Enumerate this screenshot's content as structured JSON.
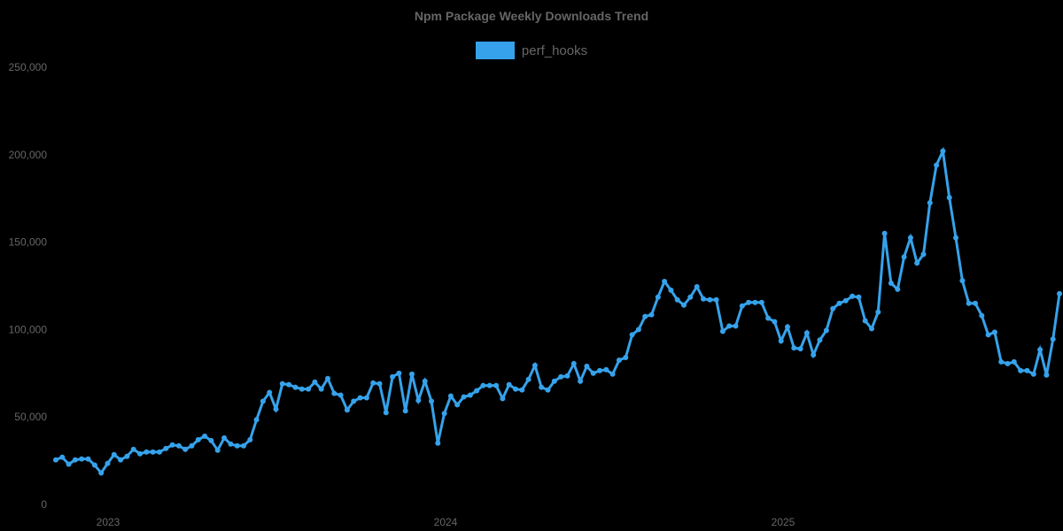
{
  "chart_data": {
    "type": "line",
    "title": "Npm Package Weekly Downloads Trend",
    "xlabel": "",
    "ylabel": "",
    "ylim": [
      0,
      250000
    ],
    "yticks": [
      0,
      50000,
      100000,
      150000,
      200000,
      250000
    ],
    "ytick_labels": [
      "0",
      "50,000",
      "100,000",
      "150,000",
      "200,000",
      "250,000"
    ],
    "xtick_labels": [
      "2023",
      "2024",
      "2025"
    ],
    "grid": false,
    "legend_position": "top-center",
    "series": [
      {
        "name": "perf_hooks",
        "color": "#36a2eb",
        "values": [
          25000,
          26500,
          22500,
          25000,
          25500,
          25500,
          22000,
          17500,
          23000,
          28000,
          25000,
          27000,
          31000,
          28500,
          29500,
          29500,
          29500,
          31500,
          33500,
          33000,
          31000,
          33000,
          36500,
          38500,
          36000,
          30500,
          37500,
          34000,
          33000,
          33000,
          36500,
          48000,
          58500,
          63500,
          54000,
          68500,
          68000,
          66500,
          65500,
          65500,
          69500,
          65500,
          71500,
          63000,
          62000,
          53500,
          58500,
          60500,
          60500,
          69000,
          68500,
          52000,
          72500,
          74500,
          53000,
          74000,
          59000,
          70000,
          58500,
          34500,
          51500,
          61500,
          56500,
          61000,
          62000,
          64500,
          67500,
          67500,
          67500,
          60000,
          68000,
          65500,
          65000,
          71000,
          79000,
          66500,
          65000,
          70000,
          72500,
          73000,
          80000,
          70000,
          78500,
          74500,
          76000,
          76500,
          74000,
          82000,
          83500,
          96500,
          99500,
          107000,
          108000,
          118000,
          127000,
          122000,
          116500,
          113500,
          118000,
          124000,
          117000,
          116500,
          116500,
          98500,
          101500,
          101500,
          113000,
          115000,
          115000,
          115000,
          106000,
          104000,
          93000,
          101000,
          89000,
          88500,
          97500,
          85000,
          93500,
          99000,
          111500,
          114500,
          116000,
          118500,
          118000,
          104500,
          100000,
          109500,
          154500,
          126000,
          122500,
          141000,
          152000,
          137500,
          142500,
          172000,
          193500,
          201500,
          175000,
          152000,
          127500,
          114500,
          114500,
          107500,
          96500,
          98000,
          81000,
          80000,
          81000,
          76000,
          76000,
          74000,
          88000,
          73500,
          94000,
          120000
        ]
      }
    ]
  },
  "legend": {
    "items": [
      {
        "label": "perf_hooks",
        "color": "#36a2eb"
      }
    ]
  }
}
